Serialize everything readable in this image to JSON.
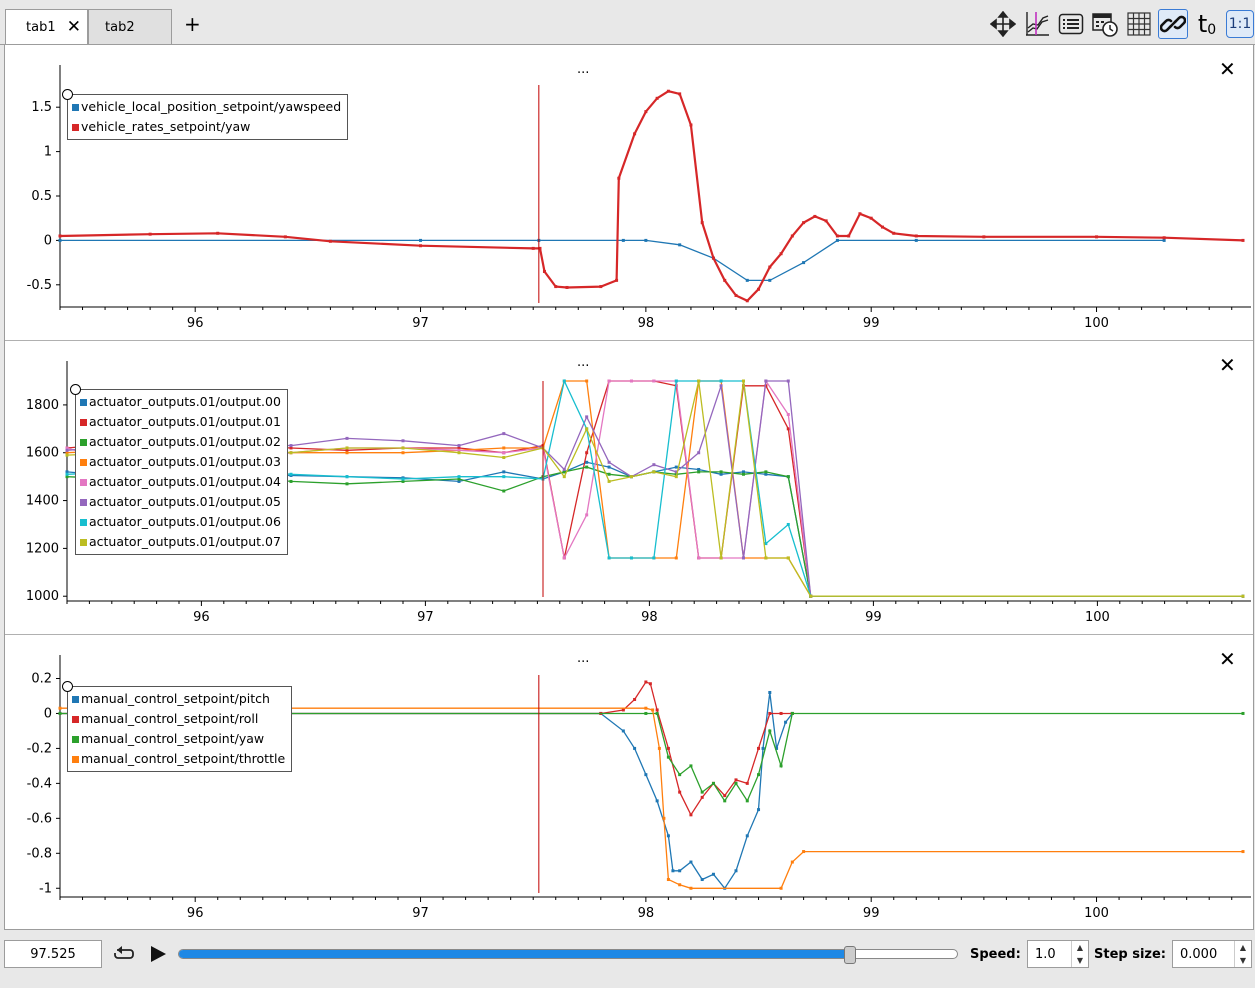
{
  "tabs": [
    {
      "label": "tab1",
      "active": true
    },
    {
      "label": "tab2",
      "active": false
    }
  ],
  "add_tab_label": "+",
  "toolbar": {
    "icons": [
      "move-icon",
      "plot-icon",
      "list-icon",
      "calendar-clock-icon",
      "grid-icon",
      "link-icon",
      "time-zero-icon",
      "one-to-one-icon"
    ],
    "time_zero_label": "t",
    "time_zero_sub": "0",
    "one_to_one_label": "1:1"
  },
  "colors": {
    "blue": "#1f77b4",
    "red": "#d62728",
    "green": "#2ca02c",
    "orange": "#ff7f0e",
    "pink": "#e377c2",
    "purple": "#9467bd",
    "cyan": "#17becf",
    "olive": "#bcbd22"
  },
  "panels": [
    {
      "dots": "...",
      "legend": [
        {
          "label": "vehicle_local_position_setpoint/yawspeed",
          "color": "#1f77b4"
        },
        {
          "label": "vehicle_rates_setpoint/yaw",
          "color": "#d62728"
        }
      ]
    },
    {
      "dots": "...",
      "legend": [
        {
          "label": "actuator_outputs.01/output.00",
          "color": "#1f77b4"
        },
        {
          "label": "actuator_outputs.01/output.01",
          "color": "#d62728"
        },
        {
          "label": "actuator_outputs.01/output.02",
          "color": "#2ca02c"
        },
        {
          "label": "actuator_outputs.01/output.03",
          "color": "#ff7f0e"
        },
        {
          "label": "actuator_outputs.01/output.04",
          "color": "#e377c2"
        },
        {
          "label": "actuator_outputs.01/output.05",
          "color": "#9467bd"
        },
        {
          "label": "actuator_outputs.01/output.06",
          "color": "#17becf"
        },
        {
          "label": "actuator_outputs.01/output.07",
          "color": "#bcbd22"
        }
      ]
    },
    {
      "dots": "...",
      "legend": [
        {
          "label": "manual_control_setpoint/pitch",
          "color": "#1f77b4"
        },
        {
          "label": "manual_control_setpoint/roll",
          "color": "#d62728"
        },
        {
          "label": "manual_control_setpoint/yaw",
          "color": "#2ca02c"
        },
        {
          "label": "manual_control_setpoint/throttle",
          "color": "#ff7f0e"
        }
      ]
    }
  ],
  "chart_data": [
    {
      "type": "line",
      "x_ticks": [
        96,
        97,
        98,
        99,
        100
      ],
      "xlim": [
        95.4,
        100.65
      ],
      "y_ticks": [
        -0.5,
        0,
        0.5,
        1,
        1.5
      ],
      "ylim": [
        -0.75,
        1.75
      ],
      "cursor_x": 97.525,
      "series": [
        {
          "name": "vehicle_local_position_setpoint/yawspeed",
          "color": "#1f77b4",
          "x": [
            95.4,
            97.0,
            97.525,
            97.9,
            98.0,
            98.15,
            98.3,
            98.45,
            98.55,
            98.7,
            98.85,
            99.2,
            100.3
          ],
          "y": [
            0,
            0,
            0,
            0,
            0,
            -0.05,
            -0.2,
            -0.45,
            -0.45,
            -0.25,
            0,
            0,
            0
          ]
        },
        {
          "name": "vehicle_rates_setpoint/yaw",
          "color": "#d62728",
          "x": [
            95.4,
            95.8,
            96.1,
            96.4,
            96.6,
            97.0,
            97.5,
            97.53,
            97.55,
            97.6,
            97.65,
            97.8,
            97.87,
            97.88,
            97.95,
            98.0,
            98.05,
            98.1,
            98.15,
            98.2,
            98.25,
            98.3,
            98.35,
            98.4,
            98.45,
            98.5,
            98.55,
            98.6,
            98.65,
            98.7,
            98.75,
            98.8,
            98.85,
            98.9,
            98.95,
            99.0,
            99.05,
            99.1,
            99.2,
            99.5,
            100.0,
            100.3,
            100.65
          ],
          "y": [
            0.05,
            0.07,
            0.08,
            0.04,
            -0.01,
            -0.06,
            -0.09,
            -0.09,
            -0.35,
            -0.52,
            -0.53,
            -0.52,
            -0.45,
            0.7,
            1.2,
            1.45,
            1.6,
            1.68,
            1.65,
            1.3,
            0.2,
            -0.2,
            -0.45,
            -0.62,
            -0.68,
            -0.55,
            -0.3,
            -0.15,
            0.05,
            0.2,
            0.27,
            0.22,
            0.05,
            0.05,
            0.3,
            0.25,
            0.15,
            0.08,
            0.05,
            0.04,
            0.04,
            0.03,
            0.0
          ]
        }
      ]
    },
    {
      "type": "line",
      "x_ticks": [
        96,
        97,
        98,
        99,
        100
      ],
      "xlim": [
        95.4,
        100.65
      ],
      "y_ticks": [
        1000,
        1200,
        1400,
        1600,
        1800
      ],
      "ylim": [
        980,
        1900
      ],
      "cursor_x": 97.525,
      "x": [
        95.4,
        95.65,
        95.9,
        96.15,
        96.4,
        96.65,
        96.9,
        97.15,
        97.35,
        97.525,
        97.62,
        97.72,
        97.82,
        97.92,
        98.02,
        98.12,
        98.22,
        98.32,
        98.42,
        98.52,
        98.62,
        98.72,
        100.65
      ],
      "series": [
        {
          "name": "actuator_outputs.01/output.00",
          "color": "#1f77b4",
          "values": [
            1520,
            1500,
            1520,
            1510,
            1505,
            1500,
            1495,
            1480,
            1520,
            1490,
            1520,
            1560,
            1540,
            1500,
            1520,
            1540,
            1530,
            1510,
            1520,
            1510,
            1500,
            1000,
            1000
          ]
        },
        {
          "name": "actuator_outputs.01/output.01",
          "color": "#d62728",
          "values": [
            1620,
            1640,
            1600,
            1630,
            1620,
            1610,
            1620,
            1620,
            1600,
            1630,
            1160,
            1600,
            1900,
            1900,
            1900,
            1880,
            1160,
            1160,
            1880,
            1880,
            1700,
            1000,
            1000
          ]
        },
        {
          "name": "actuator_outputs.01/output.02",
          "color": "#2ca02c",
          "values": [
            1500,
            1490,
            1510,
            1500,
            1480,
            1470,
            1480,
            1490,
            1440,
            1500,
            1520,
            1540,
            1510,
            1500,
            1520,
            1510,
            1520,
            1520,
            1510,
            1520,
            1500,
            1000,
            1000
          ]
        },
        {
          "name": "actuator_outputs.01/output.03",
          "color": "#ff7f0e",
          "values": [
            1600,
            1610,
            1590,
            1620,
            1600,
            1600,
            1600,
            1610,
            1620,
            1620,
            1900,
            1900,
            1160,
            1160,
            1160,
            1160,
            1900,
            1900,
            1160,
            1160,
            1160,
            1000,
            1000
          ]
        },
        {
          "name": "actuator_outputs.01/output.04",
          "color": "#e377c2",
          "values": [
            1620,
            1550,
            1600,
            1560,
            1600,
            1620,
            1620,
            1610,
            1600,
            1620,
            1160,
            1340,
            1900,
            1900,
            1900,
            1900,
            1160,
            1160,
            1160,
            1900,
            1760,
            1000,
            1000
          ]
        },
        {
          "name": "actuator_outputs.01/output.05",
          "color": "#9467bd",
          "values": [
            1610,
            1630,
            1610,
            1640,
            1630,
            1660,
            1650,
            1630,
            1680,
            1620,
            1530,
            1750,
            1560,
            1500,
            1550,
            1520,
            1600,
            1880,
            1160,
            1900,
            1900,
            1000,
            1000
          ]
        },
        {
          "name": "actuator_outputs.01/output.06",
          "color": "#17becf",
          "values": [
            1510,
            1520,
            1500,
            1530,
            1510,
            1500,
            1490,
            1500,
            1500,
            1490,
            1900,
            1700,
            1160,
            1160,
            1160,
            1900,
            1900,
            1900,
            1900,
            1220,
            1300,
            1000,
            1000
          ]
        },
        {
          "name": "actuator_outputs.01/output.07",
          "color": "#bcbd22",
          "values": [
            1590,
            1600,
            1600,
            1610,
            1600,
            1620,
            1620,
            1600,
            1580,
            1620,
            1500,
            1700,
            1480,
            1500,
            1520,
            1500,
            1900,
            1160,
            1900,
            1160,
            1160,
            1000,
            1000
          ]
        }
      ]
    },
    {
      "type": "line",
      "x_ticks": [
        96,
        97,
        98,
        99,
        100
      ],
      "xlim": [
        95.4,
        100.65
      ],
      "y_ticks": [
        -1,
        -0.8,
        -0.6,
        -0.4,
        -0.2,
        0,
        0.2
      ],
      "y_tick_labels": [
        "-1",
        "-0.8",
        "-0.6",
        "-0.4",
        "-0.2",
        "0",
        "0.2"
      ],
      "ylim": [
        -1.05,
        0.22
      ],
      "cursor_x": 97.525,
      "series": [
        {
          "name": "manual_control_setpoint/pitch",
          "color": "#1f77b4",
          "x": [
            95.4,
            97.8,
            97.9,
            97.95,
            98.0,
            98.05,
            98.1,
            98.12,
            98.15,
            98.2,
            98.25,
            98.3,
            98.35,
            98.4,
            98.45,
            98.5,
            98.52,
            98.55,
            98.58,
            98.62,
            98.65
          ],
          "y": [
            0,
            0,
            -0.1,
            -0.2,
            -0.35,
            -0.5,
            -0.7,
            -0.9,
            -0.9,
            -0.85,
            -0.95,
            -0.92,
            -1.0,
            -0.9,
            -0.7,
            -0.55,
            -0.2,
            0.12,
            -0.2,
            -0.05,
            0
          ]
        },
        {
          "name": "manual_control_setpoint/roll",
          "color": "#d62728",
          "x": [
            95.4,
            97.8,
            97.9,
            97.95,
            98.0,
            98.02,
            98.05,
            98.1,
            98.15,
            98.2,
            98.25,
            98.3,
            98.35,
            98.4,
            98.45,
            98.5,
            98.55,
            98.6,
            98.65
          ],
          "y": [
            0,
            0,
            0.02,
            0.08,
            0.18,
            0.17,
            0.02,
            -0.2,
            -0.45,
            -0.58,
            -0.48,
            -0.4,
            -0.47,
            -0.38,
            -0.4,
            -0.2,
            0,
            0,
            0
          ]
        },
        {
          "name": "manual_control_setpoint/yaw",
          "color": "#2ca02c",
          "x": [
            95.4,
            98.0,
            98.05,
            98.1,
            98.15,
            98.2,
            98.25,
            98.3,
            98.35,
            98.4,
            98.45,
            98.5,
            98.55,
            98.6,
            98.65,
            100.65
          ],
          "y": [
            0,
            0,
            0,
            -0.25,
            -0.35,
            -0.3,
            -0.45,
            -0.4,
            -0.5,
            -0.4,
            -0.5,
            -0.35,
            -0.1,
            -0.3,
            0,
            0
          ]
        },
        {
          "name": "manual_control_setpoint/throttle",
          "color": "#ff7f0e",
          "x": [
            95.4,
            98.0,
            98.03,
            98.06,
            98.08,
            98.1,
            98.15,
            98.2,
            98.6,
            98.65,
            98.7,
            100.65
          ],
          "y": [
            0.03,
            0.03,
            0.02,
            -0.2,
            -0.6,
            -0.95,
            -0.98,
            -1.0,
            -1.0,
            -0.85,
            -0.79,
            -0.79
          ]
        }
      ]
    }
  ],
  "bottom": {
    "time_value": "97.525",
    "progress_fraction": 0.86,
    "speed_label": "Speed:",
    "speed_value": "1.0",
    "step_label": "Step size:",
    "step_value": "0.000"
  }
}
